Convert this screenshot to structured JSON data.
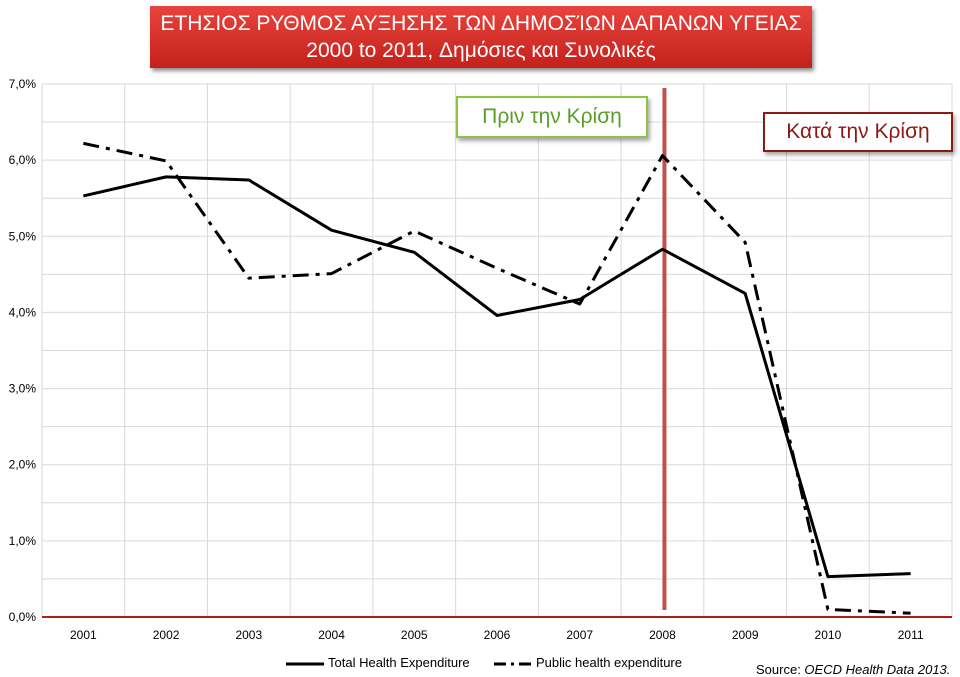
{
  "header": {
    "title_line1": "ΕΤΗΣΙΟΣ ΡΥΘΜΟΣ ΑΥΞΗΣΗΣ ΤΩΝ ΔΗΜΟΣΊΩΝ ΔΑΠΑΝΩΝ ΥΓΕΙΑΣ",
    "title_line2": "2000 to 2011, Δημόσιες και Συνολικές"
  },
  "annotations": {
    "before_crisis": "Πριν την Κρίση",
    "during_crisis": "Κατά την Κρίση",
    "crisis_marker_year": "2008"
  },
  "legend": {
    "total_label": "Total Health Expenditure",
    "public_label": "Public health expenditure"
  },
  "source": {
    "prefix": "Source: ",
    "name": "OECD Health Data 2013."
  },
  "colors": {
    "title_bg": "#d42f29",
    "before_border": "#8cc63e",
    "during_border": "#8b1a15",
    "crisis_line": "#c0504d",
    "series": "#000000",
    "grid": "#d9d9d9"
  },
  "chart_data": {
    "type": "line",
    "title": "ΕΤΗΣΙΟΣ ΡΥΘΜΟΣ ΑΥΞΗΣΗΣ ΤΩΝ ΔΗΜΟΣΊΩΝ ΔΑΠΑΝΩΝ ΥΓΕΙΑΣ 2000 to 2011, Δημόσιες και Συνολικές",
    "categories": [
      "2001",
      "2002",
      "2003",
      "2004",
      "2005",
      "2006",
      "2007",
      "2008",
      "2009",
      "2010",
      "2011"
    ],
    "y_ticks": [
      "0,0%",
      "1,0%",
      "2,0%",
      "3,0%",
      "4,0%",
      "5,0%",
      "6,0%",
      "7,0%"
    ],
    "ylim": [
      0,
      7
    ],
    "grid": true,
    "legend_position": "bottom",
    "series": [
      {
        "name": "Total Health Expenditure",
        "style": "solid",
        "values": [
          5.53,
          5.78,
          5.74,
          5.08,
          4.79,
          3.96,
          4.17,
          4.83,
          4.25,
          0.53,
          0.57
        ]
      },
      {
        "name": "Public health expenditure",
        "style": "dash-dot",
        "values": [
          6.22,
          5.99,
          4.45,
          4.51,
          5.07,
          4.58,
          4.11,
          6.06,
          4.92,
          0.1,
          0.05
        ]
      }
    ]
  }
}
